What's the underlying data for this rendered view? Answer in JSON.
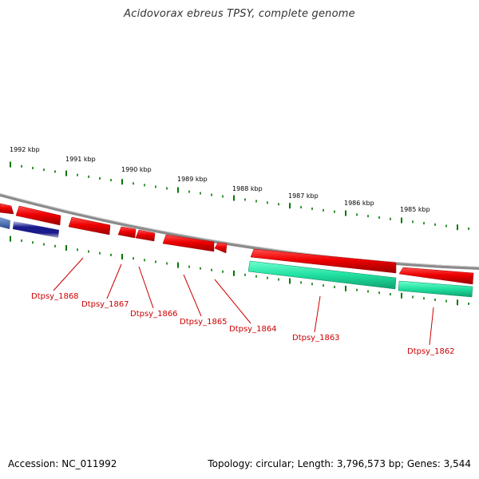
{
  "title": "Acidovorax ebreus TPSY, complete genome",
  "footer": {
    "accession": "Accession: NC_011992",
    "summary": "Topology: circular; Length: 3,796,573 bp; Genes: 3,544"
  },
  "colors": {
    "backbone": "#8a8a8a",
    "forward_gene": "#ee0000",
    "reverse_gene": "#20e0a0",
    "blue_feature": "#1a1a8c",
    "tick": "#007700",
    "gene_label": "#cc0000"
  },
  "scale_labels": [
    "1992 kbp",
    "1991 kbp",
    "1990 kbp",
    "1989 kbp",
    "1988 kbp",
    "1987 kbp",
    "1986 kbp",
    "1985 kbp"
  ],
  "gene_labels": [
    "Dtpsy_1868",
    "Dtpsy_1867",
    "Dtpsy_1866",
    "Dtpsy_1865",
    "Dtpsy_1864",
    "Dtpsy_1863",
    "Dtpsy_1862"
  ]
}
